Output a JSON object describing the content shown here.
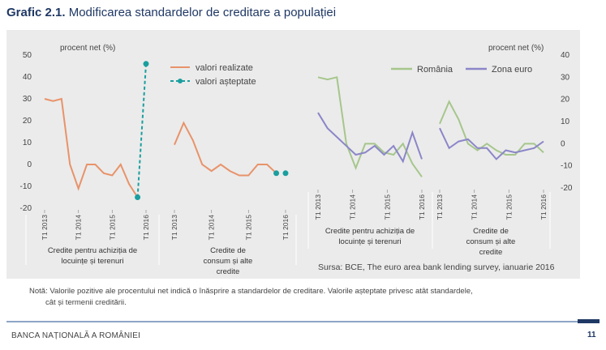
{
  "header": {
    "title_prefix": "Grafic 2.1.",
    "title_text": "Modificarea standardelor de creditare a populației"
  },
  "chart_data": [
    {
      "type": "line",
      "unit_label": "procent net (%)",
      "ylim": [
        -20,
        50
      ],
      "yticks": [
        "50",
        "40",
        "30",
        "20",
        "10",
        "0",
        "-10",
        "-20"
      ],
      "x_tick_labels": [
        "T1 2013",
        "T1 2014",
        "T1 2015",
        "T1 2016",
        "T1 2013",
        "T1 2014",
        "T1 2015",
        "T1 2016"
      ],
      "groups": [
        "Credite pentru achiziția de locuințe și terenuri",
        "Credite de consum și alte credite"
      ],
      "legend": [
        "valori realizate",
        "valori așteptate"
      ],
      "series": [
        {
          "name": "valori realizate",
          "group": "Credite pentru achiziția de locuințe și terenuri",
          "color": "#e8936a",
          "x": [
            "T1 2013",
            "T2 2013",
            "T3 2013",
            "T4 2013",
            "T1 2014",
            "T2 2014",
            "T3 2014",
            "T4 2014",
            "T1 2015",
            "T2 2015",
            "T3 2015",
            "T4 2015",
            "T1 2016"
          ],
          "values": [
            30,
            29,
            30,
            0,
            -11,
            0,
            0,
            -4,
            -5,
            0,
            -9,
            -15,
            null
          ]
        },
        {
          "name": "valori așteptate",
          "group": "Credite pentru achiziția de locuințe și terenuri",
          "color": "#1a9e9e",
          "x": [
            "T4 2015",
            "T1 2016"
          ],
          "values": [
            -15,
            46
          ]
        },
        {
          "name": "valori realizate",
          "group": "Credite de consum și alte credite",
          "color": "#e8936a",
          "x": [
            "T1 2013",
            "T2 2013",
            "T3 2013",
            "T4 2013",
            "T1 2014",
            "T2 2014",
            "T3 2014",
            "T4 2014",
            "T1 2015",
            "T2 2015",
            "T3 2015",
            "T4 2015"
          ],
          "values": [
            9,
            19,
            11,
            0,
            -3,
            0,
            -3,
            -5,
            -5,
            0,
            0,
            -4
          ]
        },
        {
          "name": "valori așteptate",
          "group": "Credite de consum și alte credite",
          "color": "#1a9e9e",
          "x": [
            "T4 2015",
            "T1 2016"
          ],
          "values": [
            -4,
            -4
          ]
        }
      ]
    },
    {
      "type": "line",
      "unit_label": "procent net (%)",
      "ylim": [
        -20,
        40
      ],
      "yticks": [
        "40",
        "30",
        "20",
        "10",
        "0",
        "-10",
        "-20"
      ],
      "x_tick_labels": [
        "T1 2013",
        "T1 2014",
        "T1 2015",
        "T1 2016",
        "T1 2013",
        "T1 2014",
        "T1 2015",
        "T1 2016"
      ],
      "groups": [
        "Credite pentru achiziția de locuințe și terenuri",
        "Credite de consum și alte credite"
      ],
      "legend": [
        "România",
        "Zona euro"
      ],
      "source": "Sursa: BCE, The euro area bank lending survey, ianuarie 2016",
      "series": [
        {
          "name": "România",
          "group": "Credite pentru achiziția de locuințe și terenuri",
          "color": "#a6c68c",
          "values": [
            30,
            29,
            30,
            0,
            -11,
            0,
            0,
            -4,
            -5,
            0,
            -9,
            -15
          ]
        },
        {
          "name": "Zona euro",
          "group": "Credite pentru achiziția de locuințe și terenuri",
          "color": "#8b86c8",
          "values": [
            14,
            7,
            3,
            -1,
            -5,
            -4,
            -1,
            -5,
            -1,
            -8,
            5,
            -7
          ]
        },
        {
          "name": "România",
          "group": "Credite de consum și alte credite",
          "color": "#a6c68c",
          "values": [
            9,
            19,
            11,
            0,
            -3,
            0,
            -3,
            -5,
            -5,
            0,
            0,
            -4
          ]
        },
        {
          "name": "Zona euro",
          "group": "Credite de consum și alte credite",
          "color": "#8b86c8",
          "values": [
            7,
            -2,
            1,
            2,
            -2,
            -2,
            -7,
            -3,
            -4,
            -3,
            -2,
            1
          ]
        }
      ]
    }
  ],
  "note": {
    "line1": "Notă: Valorile pozitive ale procentului net indică o înăsprire a standardelor de creditare. Valorile așteptate privesc atât standardele,",
    "line2": "cât și termenii creditării."
  },
  "footer": {
    "left": "BANCA NAȚIONALĂ A ROMÂNIEI",
    "page": "11"
  }
}
